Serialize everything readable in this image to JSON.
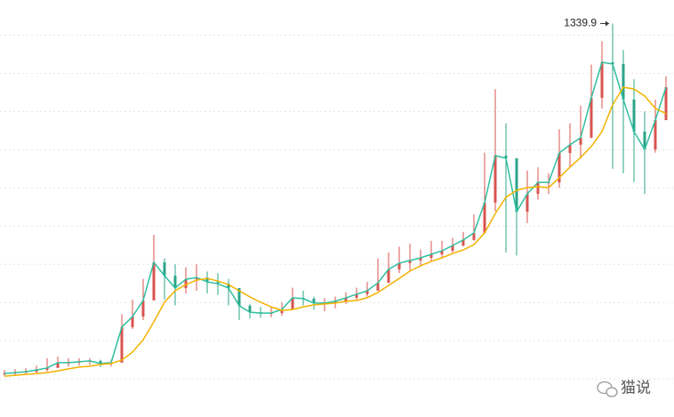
{
  "chart_data": {
    "type": "candlestick",
    "close": [
      148,
      151,
      154,
      160,
      167,
      185,
      185,
      188,
      191,
      182,
      185,
      306,
      342,
      397,
      527,
      481,
      439,
      469,
      475,
      460,
      454,
      439,
      379,
      357,
      354,
      354,
      366,
      406,
      403,
      388,
      388,
      394,
      406,
      418,
      430,
      457,
      503,
      524,
      533,
      542,
      554,
      566,
      584,
      603,
      627,
      730,
      890,
      881,
      699,
      760,
      799,
      799,
      899,
      927,
      951,
      1087,
      1208,
      1202,
      1081,
      972,
      911,
      1011,
      1123
    ],
    "high": [
      160,
      163,
      166,
      175,
      200,
      205,
      200,
      200,
      200,
      195,
      195,
      350,
      400,
      470,
      620,
      540,
      520,
      510,
      520,
      495,
      490,
      470,
      430,
      385,
      375,
      372,
      390,
      440,
      430,
      410,
      405,
      410,
      425,
      440,
      460,
      540,
      560,
      580,
      590,
      570,
      600,
      600,
      610,
      630,
      690,
      900,
      1117,
      1000,
      820,
      840,
      850,
      830,
      980,
      1000,
      1060,
      1200,
      1280,
      1339.9,
      1250,
      1150,
      1040,
      1080,
      1160
    ],
    "low": [
      140,
      142,
      146,
      150,
      155,
      170,
      172,
      175,
      178,
      170,
      172,
      190,
      300,
      330,
      420,
      400,
      380,
      420,
      430,
      420,
      415,
      380,
      330,
      335,
      338,
      340,
      345,
      370,
      380,
      365,
      360,
      370,
      385,
      400,
      410,
      430,
      470,
      490,
      500,
      515,
      530,
      540,
      560,
      580,
      600,
      650,
      700,
      560,
      550,
      660,
      740,
      760,
      780,
      850,
      880,
      950,
      1050,
      845,
      830,
      800,
      760,
      900,
      1050
    ],
    "close_line_color": "#2fbf9f",
    "up_color": "#d9534f",
    "down_color": "#2ba58a",
    "moving_average": {
      "color": "#f2b200",
      "values": [
        139,
        142,
        145,
        148,
        151,
        157,
        164,
        170,
        173,
        179,
        182,
        194,
        221,
        263,
        324,
        391,
        430,
        451,
        466,
        472,
        463,
        451,
        430,
        409,
        391,
        375,
        363,
        366,
        375,
        382,
        385,
        388,
        394,
        397,
        406,
        424,
        448,
        472,
        497,
        515,
        530,
        542,
        557,
        569,
        587,
        627,
        693,
        748,
        772,
        781,
        784,
        781,
        815,
        851,
        884,
        921,
        972,
        1063,
        1123,
        1117,
        1093,
        1051,
        1033
      ]
    },
    "ylim": [
      0,
      1420
    ],
    "yticks": [
      130,
      260,
      390,
      520,
      650,
      780,
      910,
      1040,
      1170,
      1300
    ],
    "grid": true
  },
  "watermark": "猫说"
}
